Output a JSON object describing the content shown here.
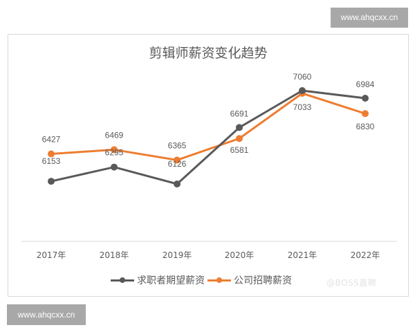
{
  "watermarks": {
    "top": "www.ahqcxx.cn",
    "bottom": "www.ahqcxx.cn",
    "source": "@BOSS直聘"
  },
  "chart": {
    "title": "剪辑师薪资变化趋势",
    "legend": [
      {
        "name": "求职者期望薪资",
        "color": "#595959"
      },
      {
        "name": "公司招聘薪资",
        "color": "#ed7d31"
      }
    ],
    "categories": [
      "2017年",
      "2018年",
      "2019年",
      "2020年",
      "2021年",
      "2022年"
    ]
  },
  "chart_data": {
    "type": "line",
    "title": "剪辑师薪资变化趋势",
    "xlabel": "",
    "ylabel": "",
    "categories": [
      "2017年",
      "2018年",
      "2019年",
      "2020年",
      "2021年",
      "2022年"
    ],
    "series": [
      {
        "name": "求职者期望薪资",
        "color": "#595959",
        "values": [
          6153,
          6295,
          6126,
          6691,
          7060,
          6984
        ]
      },
      {
        "name": "公司招聘薪资",
        "color": "#ed7d31",
        "values": [
          6427,
          6469,
          6365,
          6581,
          7033,
          6830
        ]
      }
    ],
    "grid": false,
    "legend_position": "bottom",
    "data_labels": true
  }
}
